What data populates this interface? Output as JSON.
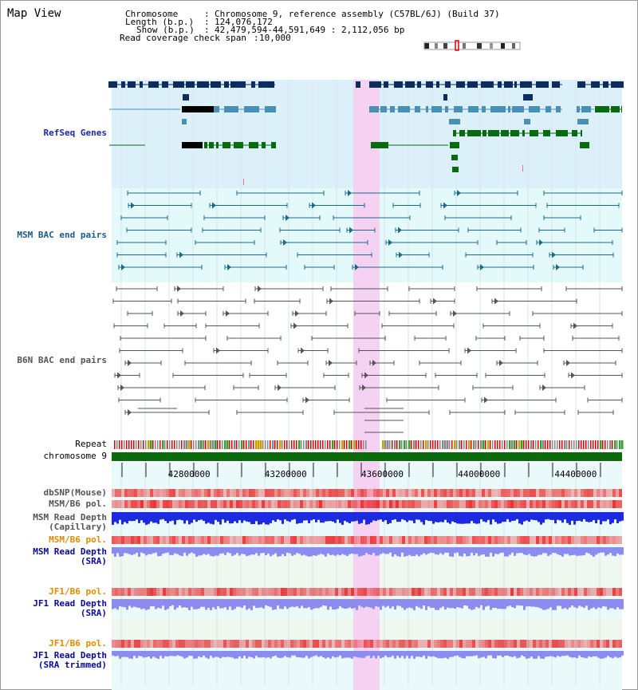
{
  "title": "Map View",
  "header": {
    "chromosome_key": "Chromosome",
    "chromosome_value": "Chromosome 9, reference assembly (C57BL/6J) (Build 37)",
    "length_key": "Length (b.p.)",
    "length_value": "124,076,172",
    "show_key": "Show (b.p.)",
    "show_value": "42,479,594-44,591,649 : 2,112,056 bp",
    "coverage_key": "Read coverage check span",
    "coverage_value": "10,000"
  },
  "tracks": {
    "refseq": "RefSeq Genes",
    "msm_bac": "MSM BAC end pairs",
    "b6n_bac": "B6N BAC end pairs",
    "repeat": "Repeat",
    "chromosome": "chromosome 9",
    "dbsnp": "dbSNP(Mouse)",
    "msm_b6_pol_1": "MSM/B6 pol.",
    "msm_depth_cap_1": "MSM Read Depth",
    "msm_depth_cap_2": "(Capillary)",
    "msm_b6_pol_2": "MSM/B6 pol.",
    "msm_depth_sra_1": "MSM Read Depth",
    "msm_depth_sra_2": "(SRA)",
    "jf1_b6_pol_1": "JF1/B6 pol.",
    "jf1_depth_sra_1": "JF1 Read Depth",
    "jf1_depth_sra_2": "(SRA)",
    "jf1_b6_pol_2": "JF1/B6 pol.",
    "jf1_depth_trim_1": "JF1 Read Depth",
    "jf1_depth_trim_2": "(SRA trimmed)"
  },
  "axis": {
    "start": 42479594,
    "end": 44591649,
    "ticks": [
      "42800000",
      "43200000",
      "43600000",
      "44000000",
      "44400000"
    ]
  },
  "colors": {
    "refseq_bg": "#dcf0fa",
    "msm_bg": "#e4fafa",
    "highlight": "#f6d2f2",
    "gene_dark": "#0c2d5e",
    "gene_mid": "#4a8fb5",
    "gene_green": "#0a6a10",
    "msm_line": "#1a6a8a",
    "b6n_line": "#555555",
    "depth_blue": "#1c2be0",
    "depth_light": "#8c8cf0",
    "chromosome": "#0b6a0b",
    "pol_red": "#f05050",
    "msm_label": "#1a5a8a",
    "refseq_label": "#1a2a9a",
    "pol2_label": "#e08a00",
    "depth_label": "#0a0a9a"
  }
}
